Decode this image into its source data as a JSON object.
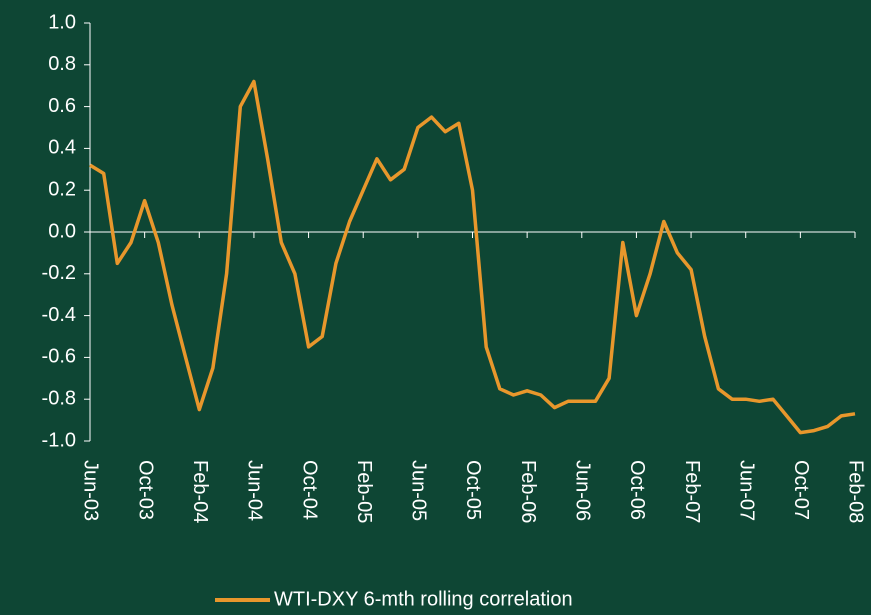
{
  "chart_data": {
    "type": "line",
    "categories": [
      "Jun-03",
      null,
      null,
      null,
      "Oct-03",
      null,
      null,
      null,
      "Feb-04",
      null,
      null,
      null,
      "Jun-04",
      null,
      null,
      null,
      "Oct-04",
      null,
      null,
      null,
      "Feb-05",
      null,
      null,
      null,
      "Jun-05",
      null,
      null,
      null,
      "Oct-05",
      null,
      null,
      null,
      "Feb-06",
      null,
      null,
      null,
      "Jun-06",
      null,
      null,
      null,
      "Oct-06",
      null,
      null,
      null,
      "Feb-07",
      null,
      null,
      null,
      "Jun-07",
      null,
      null,
      null,
      "Oct-07",
      null,
      null,
      null,
      "Feb-08"
    ],
    "series": [
      {
        "name": "WTI-DXY 6-mth rolling correlation",
        "color": "#e8972c",
        "values": [
          0.32,
          0.28,
          -0.15,
          -0.05,
          0.15,
          -0.05,
          -0.35,
          -0.6,
          -0.85,
          -0.65,
          -0.2,
          0.6,
          0.72,
          0.35,
          -0.05,
          -0.2,
          -0.55,
          -0.5,
          -0.15,
          0.05,
          0.2,
          0.35,
          0.25,
          0.3,
          0.5,
          0.55,
          0.48,
          0.52,
          0.2,
          -0.55,
          -0.75,
          -0.78,
          -0.76,
          -0.78,
          -0.84,
          -0.81,
          -0.81,
          -0.81,
          -0.7,
          -0.05,
          -0.4,
          -0.2,
          0.05,
          -0.1,
          -0.18,
          -0.5,
          -0.75,
          -0.8,
          -0.8,
          -0.81,
          -0.8,
          -0.88,
          -0.96,
          -0.95,
          -0.93,
          -0.88,
          -0.87
        ]
      }
    ],
    "ylim": [
      -1,
      1
    ],
    "yticks": [
      {
        "value": -1,
        "label": "-1.0"
      },
      -0.8,
      -0.6,
      -0.4,
      -0.2,
      {
        "value": 0,
        "label": "0.0"
      },
      0.2,
      0.4,
      0.6,
      0.8,
      {
        "value": 1,
        "label": "1.0"
      }
    ],
    "grid": false,
    "legend": "bottom"
  }
}
